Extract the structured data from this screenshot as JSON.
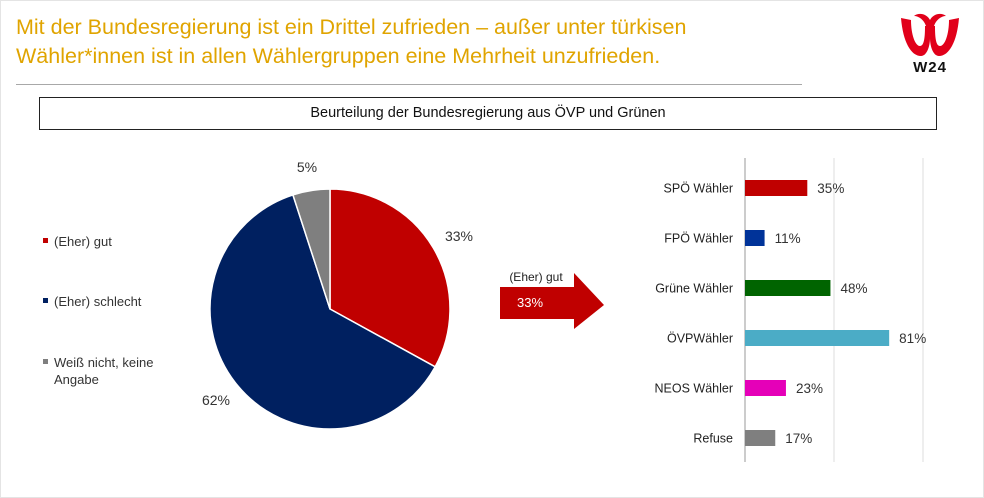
{
  "header": {
    "line1": "Mit der Bundesregierung ist ein Drittel zufrieden – außer unter türkisen",
    "line2": "Wähler*innen ist in allen Wählergruppen eine Mehrheit unzufrieden."
  },
  "logo": {
    "text": "W24"
  },
  "chart_title": "Beurteilung der Bundesregierung aus ÖVP und Grünen",
  "colors": {
    "headline": "#e0a400",
    "good": "#c00000",
    "bad": "#002060",
    "unknown": "#7f7f7f",
    "spo": "#c00000",
    "fpo": "#003399",
    "gruene": "#006400",
    "ovp": "#4bacc6",
    "neos": "#e500b8",
    "refuse": "#7f7f7f"
  },
  "arrow": {
    "label": "(Eher) gut",
    "value": "33%"
  },
  "chart_data": [
    {
      "type": "pie",
      "title": "Beurteilung der Bundesregierung aus ÖVP und Grünen",
      "slices": [
        {
          "label": "(Eher) gut",
          "value": 33,
          "display": "33%"
        },
        {
          "label": "(Eher) schlecht",
          "value": 62,
          "display": "62%"
        },
        {
          "label": "Weiß nicht, keine Angabe",
          "value": 5,
          "display": "5%"
        }
      ],
      "legend": [
        "(Eher) gut",
        "(Eher) schlecht",
        "Weiß nicht, keine Angabe"
      ],
      "legend_position": "left"
    },
    {
      "type": "bar",
      "orientation": "horizontal",
      "subtitle": "(Eher) gut",
      "categories": [
        "SPÖ Wähler",
        "FPÖ Wähler",
        "Grüne Wähler",
        "ÖVPWähler",
        "NEOS Wähler",
        "Refuse"
      ],
      "values": [
        35,
        11,
        48,
        81,
        23,
        17
      ],
      "labels": [
        "35%",
        "11%",
        "48%",
        "81%",
        "23%",
        "17%"
      ],
      "xlim": [
        0,
        100
      ],
      "grid": true
    }
  ]
}
